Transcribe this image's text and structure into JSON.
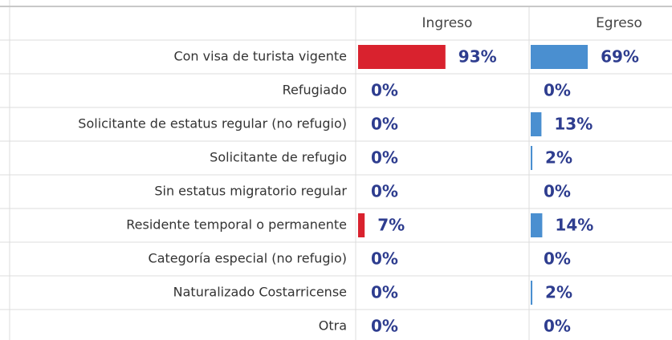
{
  "chart_data": {
    "type": "bar",
    "categories": [
      "Con visa de turista vigente",
      "Refugiado",
      "Solicitante de estatus regular (no refugio)",
      "Solicitante de refugio",
      "Sin estatus migratorio regular",
      "Residente temporal o permanente",
      "Categoría especial (no refugio)",
      "Naturalizado Costarricense",
      "Otra"
    ],
    "series": [
      {
        "name": "Ingreso",
        "color": "#d9222e",
        "values": [
          93,
          0,
          0,
          0,
          0,
          7,
          0,
          0,
          0
        ],
        "value_labels": [
          "93%",
          "0%",
          "0%",
          "0%",
          "0%",
          "7%",
          "0%",
          "0%",
          "0%"
        ]
      },
      {
        "name": "Egreso",
        "color": "#4a8fd0",
        "values": [
          69,
          0,
          13,
          2,
          0,
          14,
          0,
          2,
          0
        ],
        "value_labels": [
          "69%",
          "0%",
          "13%",
          "2%",
          "0%",
          "14%",
          "0%",
          "2%",
          "0%"
        ]
      }
    ]
  }
}
